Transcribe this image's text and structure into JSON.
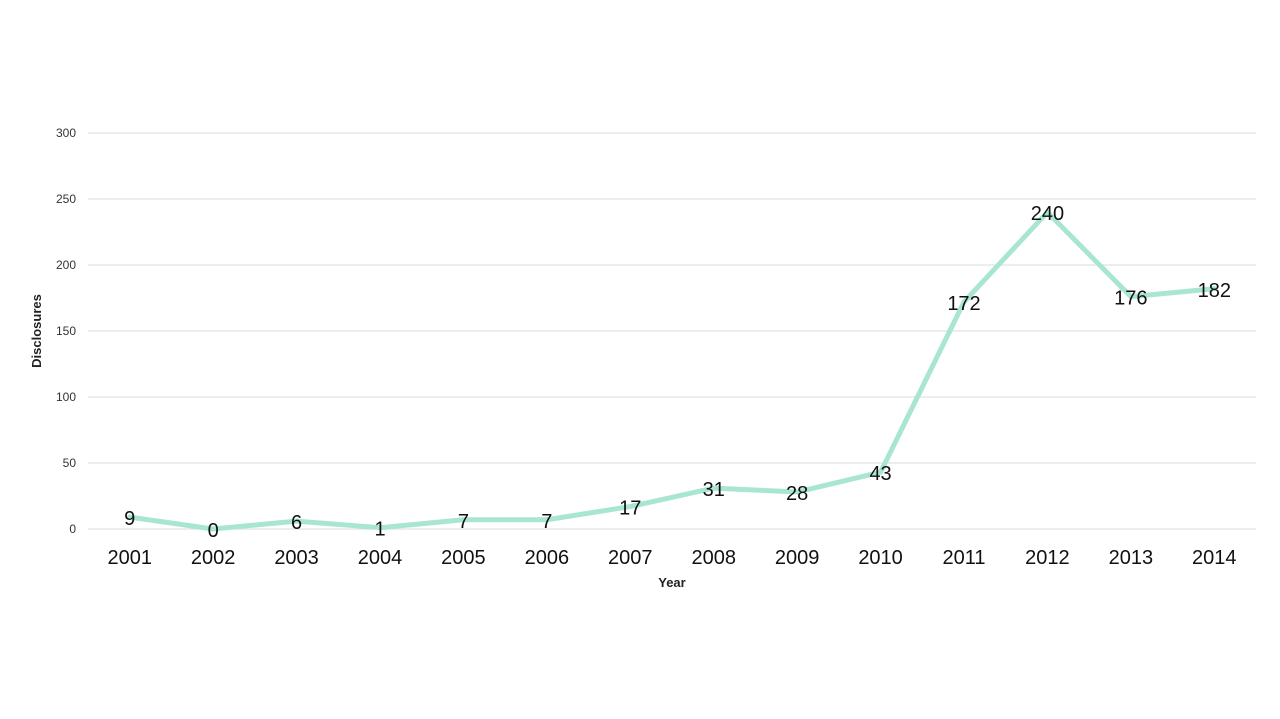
{
  "chart_data": {
    "type": "line",
    "title": "",
    "xlabel": "Year",
    "ylabel": "Disclosures",
    "categories": [
      "2001",
      "2002",
      "2003",
      "2004",
      "2005",
      "2006",
      "2007",
      "2008",
      "2009",
      "2010",
      "2011",
      "2012",
      "2013",
      "2014"
    ],
    "series": [
      {
        "values": [
          9,
          0,
          6,
          1,
          7,
          7,
          17,
          31,
          28,
          43,
          172,
          240,
          176,
          182
        ],
        "color": "#a8e6d2"
      }
    ],
    "ylim": [
      0,
      300
    ],
    "yticks": [
      "0",
      "50",
      "100",
      "150",
      "200",
      "250",
      "300"
    ],
    "grid": true,
    "legend": "none",
    "data_labels": true
  }
}
